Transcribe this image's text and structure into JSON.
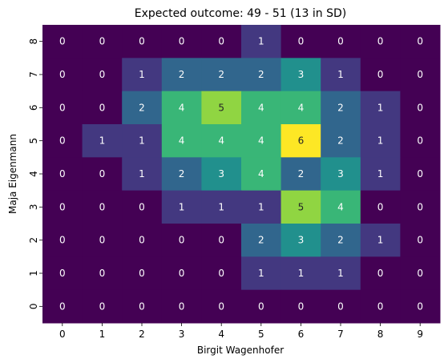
{
  "chart_data": {
    "type": "heatmap",
    "title": "Expected outcome: 49 - 51 (13 in SD)",
    "xlabel": "Birgit Wagenhofer",
    "ylabel": "Maja Eigenmann",
    "x_categories": [
      "0",
      "1",
      "2",
      "3",
      "4",
      "5",
      "6",
      "7",
      "8",
      "9"
    ],
    "y_categories": [
      "8",
      "7",
      "6",
      "5",
      "4",
      "3",
      "2",
      "1",
      "0"
    ],
    "values": [
      [
        0,
        0,
        0,
        0,
        0,
        1,
        0,
        0,
        0,
        0
      ],
      [
        0,
        0,
        1,
        2,
        2,
        2,
        3,
        1,
        0,
        0
      ],
      [
        0,
        0,
        2,
        4,
        5,
        4,
        4,
        2,
        1,
        0
      ],
      [
        0,
        1,
        1,
        4,
        4,
        4,
        6,
        2,
        1,
        0
      ],
      [
        0,
        0,
        1,
        2,
        3,
        4,
        2,
        3,
        1,
        0
      ],
      [
        0,
        0,
        0,
        1,
        1,
        1,
        5,
        4,
        0,
        0
      ],
      [
        0,
        0,
        0,
        0,
        0,
        2,
        3,
        2,
        1,
        0
      ],
      [
        0,
        0,
        0,
        0,
        0,
        1,
        1,
        1,
        0,
        0
      ],
      [
        0,
        0,
        0,
        0,
        0,
        0,
        0,
        0,
        0,
        0
      ]
    ],
    "vmin": 0,
    "vmax": 6,
    "colormap": "viridis",
    "colorbar": false,
    "annotations": true
  }
}
